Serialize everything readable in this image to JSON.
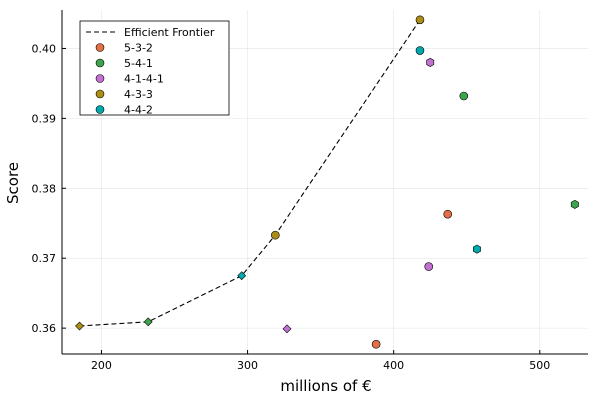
{
  "chart_data": {
    "type": "scatter",
    "xlabel": "millions of €",
    "ylabel": "Score",
    "xlim": [
      173,
      533
    ],
    "ylim": [
      0.3563,
      0.4055
    ],
    "xticks": [
      200,
      300,
      400,
      500
    ],
    "yticks": [
      0.36,
      0.37,
      0.38,
      0.39,
      0.4
    ],
    "ytick_labels": [
      "0.36",
      "0.37",
      "0.38",
      "0.39",
      "0.40"
    ],
    "grid": true,
    "legend_position": "top-left",
    "frontier": {
      "name": "Efficient Frontier",
      "style": "dashed",
      "color": "#000000",
      "points": [
        {
          "x": 185,
          "y": 0.3603
        },
        {
          "x": 232,
          "y": 0.3609
        },
        {
          "x": 296,
          "y": 0.3675
        },
        {
          "x": 319,
          "y": 0.3733
        },
        {
          "x": 418,
          "y": 0.4041
        }
      ]
    },
    "series": [
      {
        "name": "5-3-2",
        "color": "#e26f46",
        "points": [
          {
            "x": 388,
            "y": 0.3577,
            "shape": "circle"
          },
          {
            "x": 437,
            "y": 0.3763,
            "shape": "circle"
          }
        ]
      },
      {
        "name": "5-4-1",
        "color": "#3da44d",
        "points": [
          {
            "x": 232,
            "y": 0.3609,
            "shape": "diamond"
          },
          {
            "x": 448,
            "y": 0.3932,
            "shape": "circle"
          },
          {
            "x": 524,
            "y": 0.3777,
            "shape": "hexagon"
          }
        ]
      },
      {
        "name": "4-1-4-1",
        "color": "#c271d2",
        "points": [
          {
            "x": 327,
            "y": 0.3599,
            "shape": "diamond"
          },
          {
            "x": 424,
            "y": 0.3688,
            "shape": "circle"
          },
          {
            "x": 425,
            "y": 0.398,
            "shape": "hexagon"
          }
        ]
      },
      {
        "name": "4-3-3",
        "color": "#ac8d18",
        "points": [
          {
            "x": 185,
            "y": 0.3603,
            "shape": "diamond"
          },
          {
            "x": 319,
            "y": 0.3733,
            "shape": "circle"
          },
          {
            "x": 418,
            "y": 0.4041,
            "shape": "circle"
          }
        ]
      },
      {
        "name": "4-4-2",
        "color": "#00a9ad",
        "points": [
          {
            "x": 296,
            "y": 0.3675,
            "shape": "diamond"
          },
          {
            "x": 418,
            "y": 0.3997,
            "shape": "circle"
          },
          {
            "x": 457,
            "y": 0.3713,
            "shape": "hexagon"
          }
        ]
      }
    ]
  }
}
